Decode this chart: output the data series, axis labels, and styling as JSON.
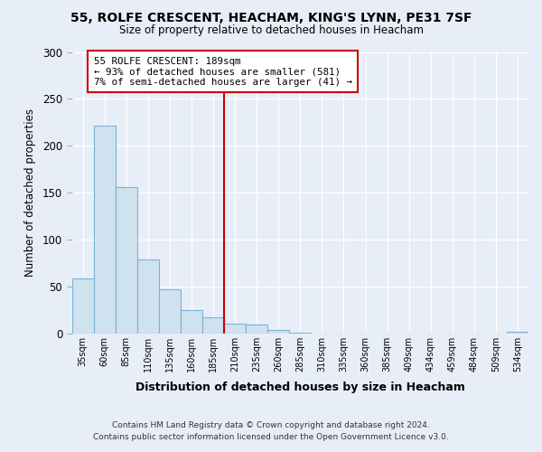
{
  "title_line1": "55, ROLFE CRESCENT, HEACHAM, KING'S LYNN, PE31 7SF",
  "title_line2": "Size of property relative to detached houses in Heacham",
  "xlabel": "Distribution of detached houses by size in Heacham",
  "ylabel": "Number of detached properties",
  "bar_labels": [
    "35sqm",
    "60sqm",
    "85sqm",
    "110sqm",
    "135sqm",
    "160sqm",
    "185sqm",
    "210sqm",
    "235sqm",
    "260sqm",
    "285sqm",
    "310sqm",
    "335sqm",
    "360sqm",
    "385sqm",
    "409sqm",
    "434sqm",
    "459sqm",
    "484sqm",
    "509sqm",
    "534sqm"
  ],
  "bar_values": [
    59,
    221,
    156,
    79,
    47,
    25,
    17,
    10,
    9,
    4,
    1,
    0,
    0,
    0,
    0,
    0,
    0,
    0,
    0,
    0,
    2
  ],
  "bar_color": "#cfe2f0",
  "bar_edge_color": "#7bb3d4",
  "vline_color": "#cc0000",
  "annotation_title": "55 ROLFE CRESCENT: 189sqm",
  "annotation_line2": "← 93% of detached houses are smaller (581)",
  "annotation_line3": "7% of semi-detached houses are larger (41) →",
  "annotation_box_color": "#ffffff",
  "annotation_box_edge": "#cc0000",
  "ylim": [
    0,
    300
  ],
  "yticks": [
    0,
    50,
    100,
    150,
    200,
    250,
    300
  ],
  "footnote1": "Contains HM Land Registry data © Crown copyright and database right 2024.",
  "footnote2": "Contains public sector information licensed under the Open Government Licence v3.0.",
  "bg_color": "#e8eef8"
}
